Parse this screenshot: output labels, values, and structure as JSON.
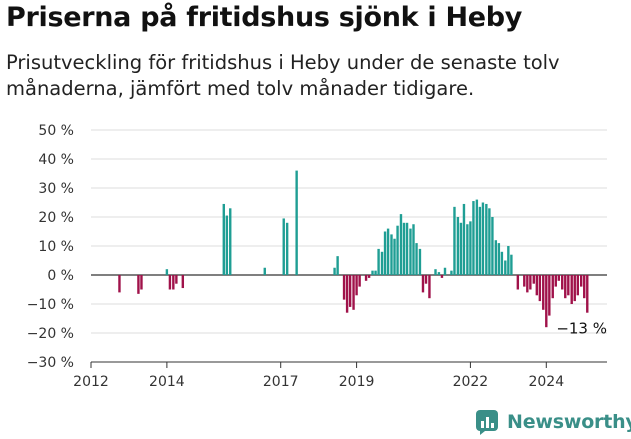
{
  "header": {
    "title": "Priserna på fritidshus sjönk i Heby",
    "subtitle": "Prisutveckling för fritidshus i Heby under de senaste tolv månaderna, jämfört med tolv månader tidigare."
  },
  "brand": {
    "name": "Newsworthy",
    "icon": "newsworthy-chart-logo-icon",
    "color": "#3a8f88"
  },
  "chart_data": {
    "type": "bar",
    "title": "Priserna på fritidshus sjönk i Heby",
    "ylim": [
      -30,
      50
    ],
    "yticks": [
      -30,
      -20,
      -10,
      0,
      10,
      20,
      30,
      40,
      50
    ],
    "ytick_labels": [
      "−30 %",
      "−20 %",
      "−10 %",
      "0 %",
      "10 %",
      "20 %",
      "30 %",
      "40 %",
      "50 %"
    ],
    "xlim": [
      2012,
      2025.6
    ],
    "xticks": [
      2012,
      2014,
      2017,
      2019,
      2022,
      2024
    ],
    "xtick_labels": [
      "2012",
      "2014",
      "2017",
      "2019",
      "2022",
      "2024"
    ],
    "grid": true,
    "colors": {
      "positive": "#1f9e94",
      "negative": "#a0124a"
    },
    "end_label": "−13 %",
    "series": [
      {
        "values": [
          [
            2012.75,
            -6
          ],
          [
            2013.25,
            -6.5
          ],
          [
            2013.33,
            -5
          ],
          [
            2014.0,
            2
          ],
          [
            2014.08,
            -5
          ],
          [
            2014.17,
            -5
          ],
          [
            2014.25,
            -3
          ],
          [
            2014.42,
            -4.5
          ],
          [
            2015.5,
            24.5
          ],
          [
            2015.58,
            20.5
          ],
          [
            2015.67,
            23
          ],
          [
            2016.58,
            2.5
          ],
          [
            2017.08,
            19.5
          ],
          [
            2017.17,
            18
          ],
          [
            2017.42,
            36
          ],
          [
            2018.42,
            2.5
          ],
          [
            2018.5,
            6.5
          ],
          [
            2018.67,
            -8.5
          ],
          [
            2018.75,
            -13
          ],
          [
            2018.83,
            -11
          ],
          [
            2018.92,
            -12
          ],
          [
            2019.0,
            -7
          ],
          [
            2019.08,
            -4
          ],
          [
            2019.25,
            -2
          ],
          [
            2019.33,
            -1
          ],
          [
            2019.42,
            1.5
          ],
          [
            2019.5,
            1.5
          ],
          [
            2019.58,
            9
          ],
          [
            2019.67,
            8
          ],
          [
            2019.75,
            15
          ],
          [
            2019.83,
            16
          ],
          [
            2019.92,
            14
          ],
          [
            2020.0,
            12.5
          ],
          [
            2020.08,
            17
          ],
          [
            2020.17,
            21
          ],
          [
            2020.25,
            18
          ],
          [
            2020.33,
            18
          ],
          [
            2020.42,
            16
          ],
          [
            2020.5,
            17.5
          ],
          [
            2020.58,
            11
          ],
          [
            2020.67,
            9
          ],
          [
            2020.75,
            -6
          ],
          [
            2020.83,
            -3
          ],
          [
            2020.92,
            -8
          ],
          [
            2021.08,
            2
          ],
          [
            2021.17,
            1
          ],
          [
            2021.25,
            -1
          ],
          [
            2021.33,
            2.5
          ],
          [
            2021.5,
            1.5
          ],
          [
            2021.58,
            23.5
          ],
          [
            2021.67,
            20
          ],
          [
            2021.75,
            18
          ],
          [
            2021.83,
            24.5
          ],
          [
            2021.92,
            17.5
          ],
          [
            2022.0,
            18.5
          ],
          [
            2022.08,
            25.5
          ],
          [
            2022.17,
            26
          ],
          [
            2022.25,
            23.5
          ],
          [
            2022.33,
            25
          ],
          [
            2022.42,
            24.5
          ],
          [
            2022.5,
            23
          ],
          [
            2022.58,
            20
          ],
          [
            2022.67,
            12
          ],
          [
            2022.75,
            11
          ],
          [
            2022.83,
            8
          ],
          [
            2022.92,
            5
          ],
          [
            2023.0,
            10
          ],
          [
            2023.08,
            7
          ],
          [
            2023.25,
            -5
          ],
          [
            2023.42,
            -4
          ],
          [
            2023.5,
            -6
          ],
          [
            2023.58,
            -5
          ],
          [
            2023.67,
            -3
          ],
          [
            2023.75,
            -7
          ],
          [
            2023.83,
            -9
          ],
          [
            2023.92,
            -12
          ],
          [
            2024.0,
            -18
          ],
          [
            2024.08,
            -14
          ],
          [
            2024.17,
            -8
          ],
          [
            2024.25,
            -4
          ],
          [
            2024.33,
            -2
          ],
          [
            2024.42,
            -5
          ],
          [
            2024.5,
            -8
          ],
          [
            2024.58,
            -7
          ],
          [
            2024.67,
            -10
          ],
          [
            2024.75,
            -9
          ],
          [
            2024.83,
            -7
          ],
          [
            2024.92,
            -4
          ],
          [
            2025.0,
            -8
          ],
          [
            2025.08,
            -13
          ]
        ]
      }
    ]
  }
}
